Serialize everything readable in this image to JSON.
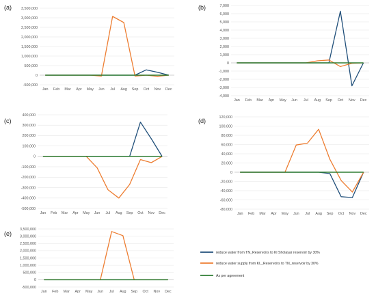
{
  "colors": {
    "series_tn": "#1f4e79",
    "series_kl": "#ed7d31",
    "series_agreement": "#2e7d32",
    "grid": "#e6e6e6"
  },
  "legend": [
    {
      "label": "reduce water from TN_Reservoirs to Kl Sholayar reservoir by 30%",
      "color": "#1f4e79"
    },
    {
      "label": "reduce water supply from KL_Reservoirs to TN_reservoir by 30%",
      "color": "#ed7d31"
    },
    {
      "label": "As per agreement",
      "color": "#2e7d32"
    }
  ],
  "chart_data": [
    {
      "panel": "(a)",
      "type": "line",
      "categories": [
        "Jan",
        "Feb",
        "Mar",
        "Apr",
        "May",
        "Jun",
        "Jul",
        "Aug",
        "Sep",
        "Oct",
        "Nov",
        "Dec"
      ],
      "ylim": [
        -500000,
        3500000
      ],
      "yticks": [
        -500000,
        0,
        500000,
        1000000,
        1500000,
        2000000,
        2500000,
        3000000,
        3500000
      ],
      "ytick_labels": [
        "-500,000",
        "0",
        "500,000",
        "1,000,000",
        "1,500,000",
        "2,000,000",
        "2,500,000",
        "3,000,000",
        "3,500,000"
      ],
      "series": [
        {
          "key": "tn",
          "values": [
            0,
            0,
            0,
            0,
            0,
            0,
            0,
            0,
            0,
            280000,
            150000,
            0
          ]
        },
        {
          "key": "kl",
          "values": [
            0,
            0,
            0,
            0,
            0,
            -50000,
            3070000,
            2750000,
            -50000,
            0,
            -60000,
            0
          ]
        },
        {
          "key": "agreement",
          "values": [
            0,
            0,
            0,
            0,
            0,
            0,
            0,
            0,
            0,
            0,
            0,
            0
          ]
        }
      ]
    },
    {
      "panel": "(b)",
      "type": "line",
      "categories": [
        "Jan",
        "Feb",
        "Mar",
        "Apr",
        "May",
        "Jun",
        "Jul",
        "Aug",
        "Sep",
        "Oct",
        "Nov",
        "Dec"
      ],
      "ylim": [
        -4000,
        7000
      ],
      "yticks": [
        -4000,
        -3000,
        -2000,
        -1000,
        0,
        1000,
        2000,
        3000,
        4000,
        5000,
        6000,
        7000
      ],
      "ytick_labels": [
        "-4,000",
        "-3,000",
        "-2,000",
        "-1,000",
        "0",
        "1,000",
        "2,000",
        "3,000",
        "4,000",
        "5,000",
        "6,000",
        "7,000"
      ],
      "series": [
        {
          "key": "tn",
          "values": [
            0,
            0,
            0,
            0,
            0,
            0,
            0,
            0,
            0,
            6300,
            -2800,
            0
          ]
        },
        {
          "key": "kl",
          "values": [
            0,
            0,
            0,
            0,
            0,
            0,
            0,
            250,
            350,
            -450,
            -50,
            0
          ]
        },
        {
          "key": "agreement",
          "values": [
            0,
            0,
            0,
            0,
            0,
            0,
            0,
            0,
            0,
            0,
            0,
            0
          ]
        }
      ]
    },
    {
      "panel": "(c)",
      "type": "line",
      "categories": [
        "Jan",
        "Feb",
        "Mar",
        "Apr",
        "May",
        "Jun",
        "Jul",
        "Aug",
        "Sep",
        "Oct",
        "Nov",
        "Dec"
      ],
      "ylim": [
        -500000,
        400000
      ],
      "yticks": [
        -500000,
        -400000,
        -300000,
        -200000,
        -100000,
        0,
        100000,
        200000,
        300000,
        400000
      ],
      "ytick_labels": [
        "-500,000",
        "-400,000",
        "-300,000",
        "-200,000",
        "-100,000",
        "0",
        "100,000",
        "200,000",
        "300,000",
        "400,000"
      ],
      "series": [
        {
          "key": "tn",
          "values": [
            0,
            0,
            0,
            0,
            0,
            0,
            0,
            0,
            0,
            330000,
            170000,
            0
          ]
        },
        {
          "key": "kl",
          "values": [
            0,
            0,
            0,
            0,
            0,
            -110000,
            -320000,
            -400000,
            -270000,
            -30000,
            -60000,
            0
          ]
        },
        {
          "key": "agreement",
          "values": [
            0,
            0,
            0,
            0,
            0,
            0,
            0,
            0,
            0,
            0,
            0,
            0
          ]
        }
      ]
    },
    {
      "panel": "(d)",
      "type": "line",
      "categories": [
        "Jan",
        "Feb",
        "Mar",
        "Apr",
        "May",
        "Jun",
        "Jul",
        "Aug",
        "Sep",
        "Oct",
        "Nov",
        "Dec"
      ],
      "ylim": [
        -80000,
        120000
      ],
      "yticks": [
        -80000,
        -60000,
        -40000,
        -20000,
        0,
        20000,
        40000,
        60000,
        80000,
        100000,
        120000
      ],
      "ytick_labels": [
        "-80,000",
        "-60,000",
        "-40,000",
        "-20,000",
        "0",
        "20,000",
        "40,000",
        "60,000",
        "80,000",
        "100,000",
        "120,000"
      ],
      "series": [
        {
          "key": "tn",
          "values": [
            0,
            0,
            0,
            0,
            0,
            0,
            0,
            0,
            -3000,
            -53000,
            -55000,
            0
          ]
        },
        {
          "key": "kl",
          "values": [
            0,
            0,
            0,
            0,
            0,
            59000,
            63000,
            93000,
            28000,
            -18000,
            -43000,
            0
          ]
        },
        {
          "key": "agreement",
          "values": [
            0,
            0,
            0,
            0,
            0,
            0,
            0,
            0,
            0,
            0,
            0,
            0
          ]
        }
      ]
    },
    {
      "panel": "(e)",
      "type": "line",
      "categories": [
        "Jan",
        "Feb",
        "Mar",
        "Apr",
        "May",
        "Jun",
        "Jul",
        "Aug",
        "Sep",
        "Oct",
        "Nov",
        "Dec"
      ],
      "ylim": [
        -500000,
        3500000
      ],
      "yticks": [
        -500000,
        0,
        500000,
        1000000,
        1500000,
        2000000,
        2500000,
        3000000,
        3500000
      ],
      "ytick_labels": [
        "-500,000",
        "0",
        "500,000",
        "1,000,000",
        "1,500,000",
        "2,000,000",
        "2,500,000",
        "3,000,000",
        "3,500,000"
      ],
      "series": [
        {
          "key": "tn",
          "values": [
            0,
            0,
            0,
            0,
            0,
            0,
            0,
            0,
            0,
            0,
            0,
            0
          ]
        },
        {
          "key": "kl",
          "values": [
            0,
            0,
            0,
            0,
            0,
            0,
            3320000,
            3040000,
            0,
            0,
            0,
            0
          ]
        },
        {
          "key": "agreement",
          "values": [
            0,
            0,
            0,
            0,
            0,
            0,
            0,
            0,
            0,
            0,
            0,
            0
          ]
        }
      ]
    }
  ]
}
